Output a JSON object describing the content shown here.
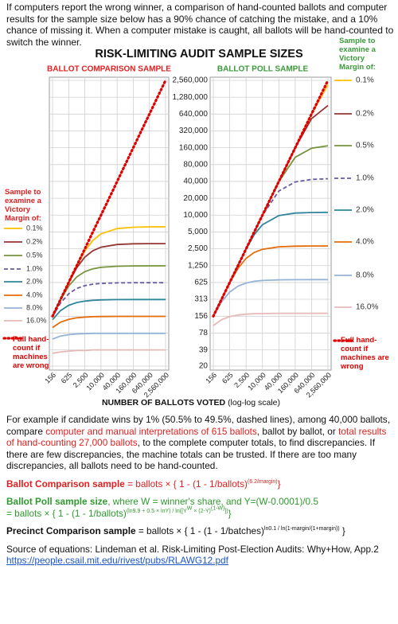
{
  "intro": "If computers report the wrong winner, a comparison of hand-counted ballots and computer results for the sample size below has a 90% chance of catching the mistake, and a 10% chance of missing it. When a computer mistake is caught, all ballots will be hand-counted to switch the winner.",
  "title": "RISK-LIMITING AUDIT SAMPLE SIZES",
  "x_label": "NUMBER OF BALLOTS VOTED",
  "x_label_note": "(log-log scale)",
  "chart_data": [
    {
      "type": "line",
      "title": "BALLOT COMPARISON SAMPLE",
      "title_color": "#e02020",
      "legend_title": "Sample to examine a Victory Margin of:",
      "legend_color": "#e02020",
      "legend": "left",
      "x": [
        156,
        312,
        625,
        1250,
        2500,
        5000,
        10000,
        40000,
        160000,
        640000,
        2560000
      ],
      "xlim": [
        156,
        2560000
      ],
      "ylim": [
        20,
        2560000
      ],
      "log": true,
      "grid": true,
      "xticks": [
        156,
        625,
        {
          "value": 2500,
          "label": "2,500"
        },
        {
          "value": 10000,
          "label": "10,000"
        },
        {
          "value": 40000,
          "label": "40,000"
        },
        {
          "value": 160000,
          "label": "160,000"
        },
        {
          "value": 640000,
          "label": "640,000"
        },
        {
          "value": 2560000,
          "label": "2,560,000"
        }
      ],
      "yticks": [
        20,
        39,
        78,
        156,
        313,
        625,
        1250,
        2500,
        5000,
        10000,
        20000,
        40000,
        80000,
        160000,
        320000,
        640000,
        1280000,
        2560000
      ],
      "series": [
        {
          "name": "0.1%",
          "color": "#ffc000",
          "style": "solid",
          "values": [
            156,
            312,
            625,
            1241,
            2291,
            3554,
            4621,
            5744,
            6082,
            6170,
            6192
          ]
        },
        {
          "name": "0.2%",
          "color": "#953735",
          "style": "solid",
          "values": [
            156,
            312,
            621,
            1145,
            1777,
            2310,
            2666,
            2983,
            3070,
            3093,
            3098
          ]
        },
        {
          "name": "0.5%",
          "color": "#77933c",
          "style": "solid",
          "values": [
            156,
            306,
            539,
            786,
            977,
            1098,
            1166,
            1221,
            1235,
            1239,
            1240
          ]
        },
        {
          "name": "1.0%",
          "color": "#6a5aa0",
          "style": "dashed",
          "values": [
            153,
            269,
            393,
            489,
            549,
            583,
            601,
            615,
            619,
            620,
            620
          ]
        },
        {
          "name": "2.0%",
          "color": "#31859c",
          "style": "solid",
          "values": [
            135,
            197,
            244,
            274,
            291,
            300,
            305,
            309,
            310,
            310,
            310
          ]
        },
        {
          "name": "4.0%",
          "color": "#e46c0a",
          "style": "solid",
          "values": [
            98,
            122,
            137,
            146,
            150,
            153,
            154,
            155,
            155,
            155,
            155
          ]
        },
        {
          "name": "8.0%",
          "color": "#95b3d7",
          "style": "solid",
          "values": [
            61,
            69,
            73,
            75,
            76,
            77,
            77,
            77,
            77,
            77,
            77
          ]
        },
        {
          "name": "16.0%",
          "color": "#e6b9b8",
          "style": "solid",
          "values": [
            34,
            36,
            37,
            38,
            38,
            39,
            39,
            39,
            39,
            39,
            39
          ]
        },
        {
          "name": "Full hand-count if machines are wrong",
          "color": "#e00000",
          "style": "dotted",
          "values": [
            156,
            312,
            625,
            1250,
            2500,
            5000,
            10000,
            40000,
            160000,
            640000,
            2560000
          ]
        }
      ]
    },
    {
      "type": "line",
      "title": "BALLOT POLL SAMPLE",
      "title_color": "#3a9a3a",
      "legend_title": "Sample to examine a Victory Margin of:",
      "legend_color": "#3a9a3a",
      "legend": "right",
      "x": [
        156,
        312,
        625,
        1250,
        2500,
        5000,
        10000,
        40000,
        160000,
        640000,
        2560000
      ],
      "xlim": [
        156,
        2560000
      ],
      "ylim": [
        20,
        2560000
      ],
      "log": true,
      "grid": true,
      "xticks": [
        156,
        625,
        {
          "value": 2500,
          "label": "2,500"
        },
        {
          "value": 10000,
          "label": "10,000"
        },
        {
          "value": 40000,
          "label": "40,000"
        },
        {
          "value": 160000,
          "label": "160,000"
        },
        {
          "value": 640000,
          "label": "640,000"
        },
        {
          "value": 2560000,
          "label": "2,560,000"
        }
      ],
      "yticks": [
        20,
        39,
        78,
        156,
        313,
        625,
        {
          "value": 1250,
          "label": "1,250"
        },
        {
          "value": 2500,
          "label": "2,500"
        },
        {
          "value": 5000,
          "label": "5,000"
        },
        {
          "value": 10000,
          "label": "10,000"
        },
        {
          "value": 20000,
          "label": "20,000"
        },
        {
          "value": 40000,
          "label": "40,000"
        },
        {
          "value": 80000,
          "label": "80,000"
        },
        {
          "value": 160000,
          "label": "160,000"
        },
        {
          "value": 320000,
          "label": "320,000"
        },
        {
          "value": 640000,
          "label": "640,000"
        },
        {
          "value": 1280000,
          "label": "1,280,000"
        },
        {
          "value": 2560000,
          "label": "2,560,000"
        }
      ],
      "series": [
        {
          "name": "0.1%",
          "color": "#ffc000",
          "style": "solid",
          "values": [
            156,
            312,
            625,
            1250,
            2500,
            5000,
            10000,
            40000,
            160000,
            639400,
            2120000
          ]
        },
        {
          "name": "0.2%",
          "color": "#953735",
          "style": "solid",
          "values": [
            156,
            312,
            625,
            1250,
            2500,
            5000,
            10000,
            40000,
            159860,
            530000,
            909000
          ]
        },
        {
          "name": "0.5%",
          "color": "#77933c",
          "style": "solid",
          "values": [
            156,
            312,
            625,
            1250,
            2500,
            5000,
            10000,
            39556,
            108000,
            157000,
            174000
          ]
        },
        {
          "name": "1.0%",
          "color": "#6a5aa0",
          "style": "dashed",
          "values": [
            156,
            312,
            625,
            1250,
            2500,
            4999,
            9889,
            27000,
            39200,
            43450,
            44600
          ]
        },
        {
          "name": "2.0%",
          "color": "#31859c",
          "style": "solid",
          "values": [
            156,
            312,
            625,
            1250,
            2472,
            4473,
            6753,
            9800,
            10870,
            11150,
            11225
          ]
        },
        {
          "name": "4.0%",
          "color": "#e46c0a",
          "style": "solid",
          "values": [
            156,
            312,
            618,
            1118,
            1688,
            2150,
            2449,
            2717,
            2788,
            2806,
            2811
          ]
        },
        {
          "name": "8.0%",
          "color": "#95b3d7",
          "style": "solid",
          "values": [
            154,
            280,
            422,
            538,
            612,
            656,
            679,
            697,
            701,
            703,
            703
          ]
        },
        {
          "name": "16.0%",
          "color": "#e6b9b8",
          "style": "solid",
          "values": [
            106,
            135,
            154,
            164,
            170,
            173,
            174,
            176,
            176,
            176,
            176
          ]
        },
        {
          "name": "Full hand-count if machines are wrong",
          "color": "#e00000",
          "style": "dotted",
          "values": [
            156,
            312,
            625,
            1250,
            2500,
            5000,
            10000,
            40000,
            160000,
            640000,
            2560000
          ]
        }
      ]
    }
  ],
  "notes": {
    "example": [
      "For example if candidate wins by 1% (50.5% to 49.5%, dashed lines), among  40,000 ballots, compare ",
      "computer and manual interpretations of 615 ballots",
      ", ballot by ballot, or ",
      "total results of hand-counting 27,000 ballots",
      ", to the complete computer totals, to find discrepancies. If there are few discrepancies, the machine totals can be trusted. If there are too many discrepancies, all ballots need to be hand-counted."
    ],
    "comparison": [
      "Ballot Comparison sample",
      " = ballots × { 1 - (1 - 1/ballots)",
      "(6.2/margin)",
      "}"
    ],
    "poll": [
      "Ballot Poll sample size",
      ", where W = winner's share, and Y=(W-0.0001)/0.5",
      "= ballots × { 1 - (1 - 1/ballots)",
      "(ln9.9 + 0.5 × lnY) / ln([Y",
      "W",
      " × (2-Y)",
      "(1-W)",
      "])",
      "}"
    ],
    "precinct": [
      "Precinct Comparison sample",
      " = ballots × { 1 - (1 - 1/batches)",
      "ln0.1 / ln(1-margin/(1+margin))",
      " }"
    ],
    "source": [
      "Source of equations: Lindeman et al. Risk-Limiting Post-Election Audits: Why+How, App.2",
      "https://people.csail.mit.edu/rivest/pubs/RLAWG12.pdf"
    ]
  }
}
